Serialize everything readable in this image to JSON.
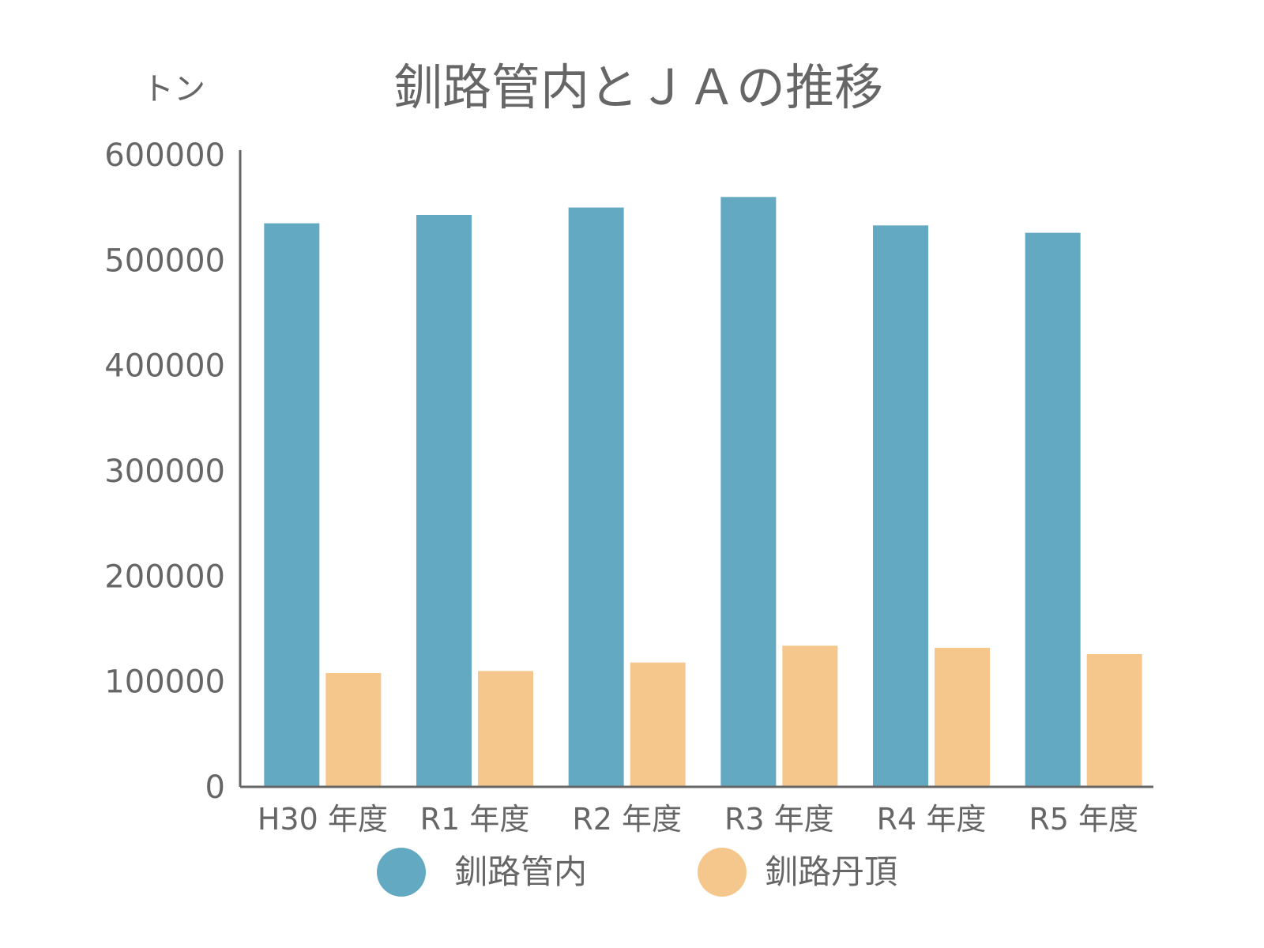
{
  "chart_data": {
    "type": "bar",
    "title": "釧路管内とＪＡの推移",
    "ylabel": "トン",
    "xlabel": "",
    "ylim": [
      0,
      600000
    ],
    "yticks": [
      "0",
      "100000",
      "200000",
      "300000",
      "400000",
      "500000",
      "600000"
    ],
    "categories": [
      "H30 年度",
      "R1 年度",
      "R2 年度",
      "R3 年度",
      "R4 年度",
      "R5 年度"
    ],
    "series": [
      {
        "name": "釧路管内",
        "color": "#64a9c2",
        "values": [
          535000,
          543000,
          550000,
          560000,
          533000,
          526000
        ]
      },
      {
        "name": "釧路丹頂",
        "color": "#f6c78c",
        "values": [
          108000,
          110000,
          118000,
          134000,
          132000,
          126000
        ]
      }
    ],
    "grid": false,
    "legend": "bottom"
  }
}
